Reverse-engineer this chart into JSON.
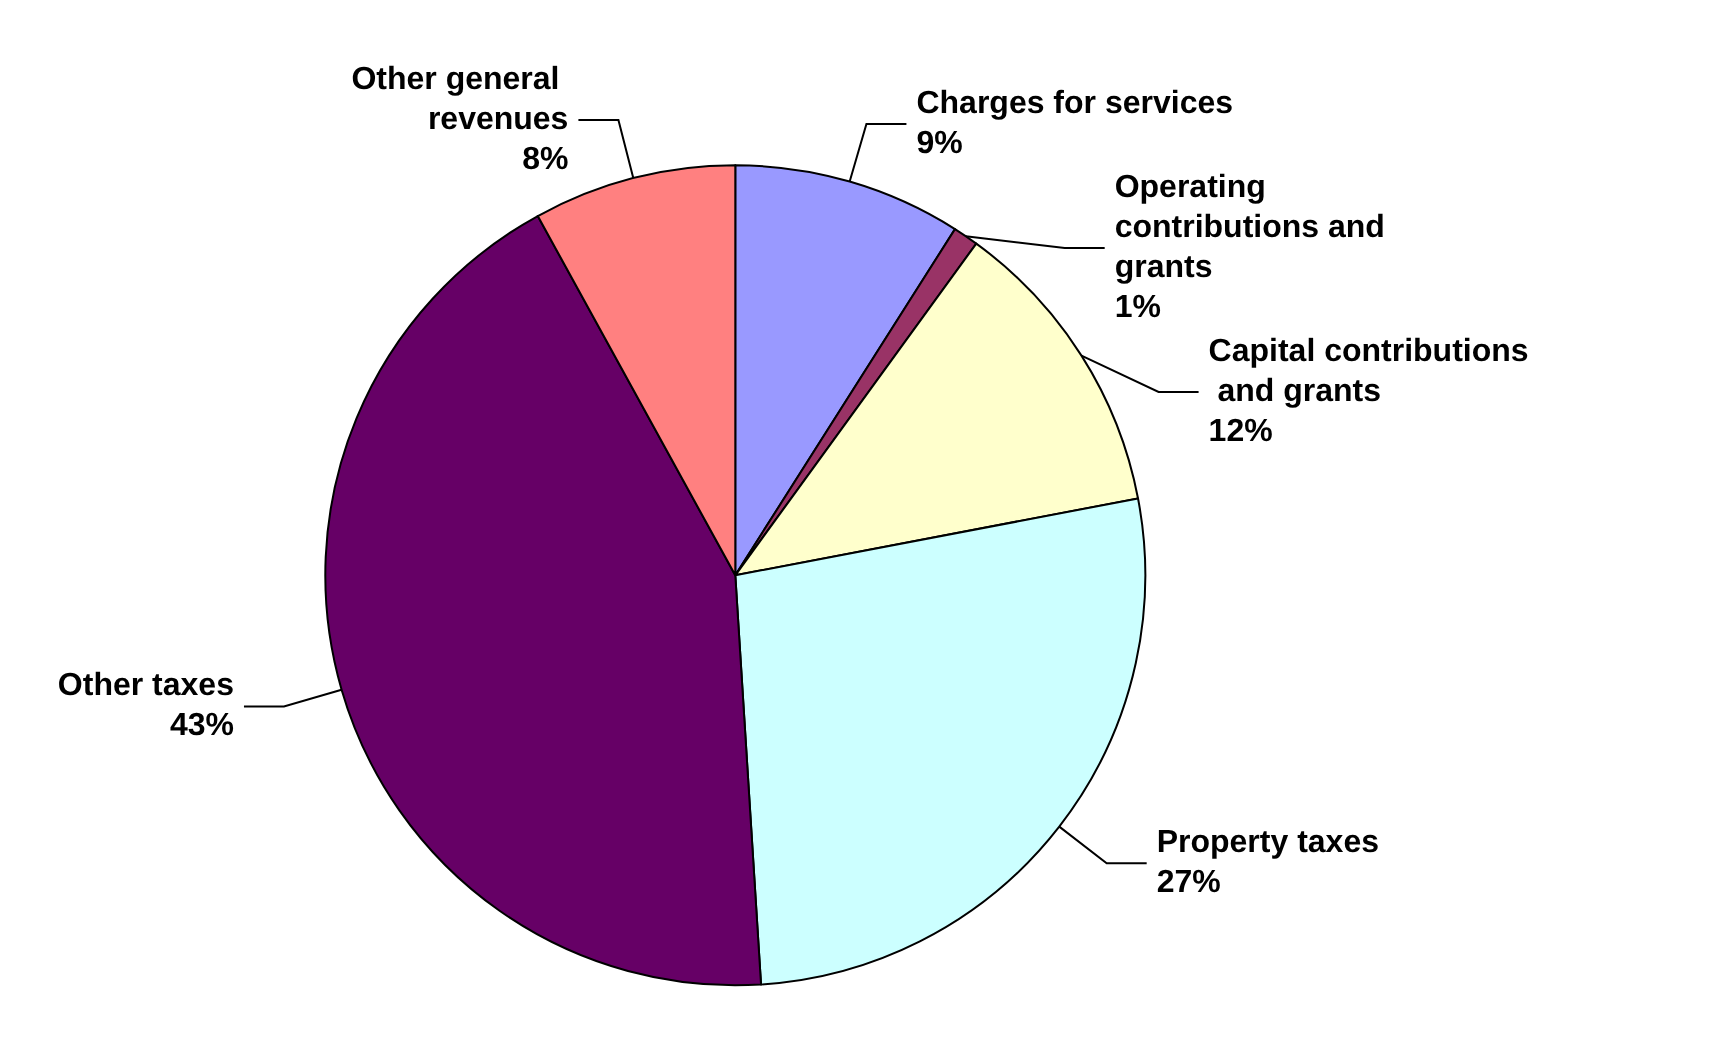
{
  "chart_data": {
    "type": "pie",
    "categories": [
      "Charges for services",
      "Operating contributions and grants",
      "Capital contributions and grants",
      "Property taxes",
      "Other taxes",
      "Other general revenues"
    ],
    "values": [
      9,
      1,
      12,
      27,
      43,
      8
    ],
    "value_labels": [
      "9%",
      "1%",
      "12%",
      "27%",
      "43%",
      "8%"
    ],
    "colors": [
      "#9999ff",
      "#993366",
      "#ffffcc",
      "#ccffff",
      "#660066",
      "#ff8080"
    ],
    "legend": false
  }
}
